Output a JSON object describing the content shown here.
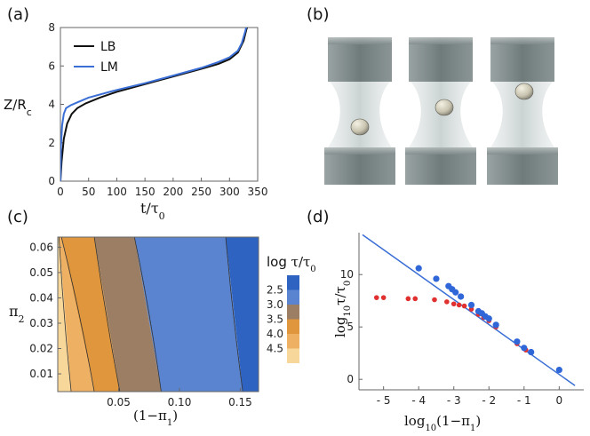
{
  "chart_data": [
    {
      "panel": "(a)",
      "type": "line",
      "xlabel": "t/τ0",
      "ylabel": "Z/Rc",
      "xlim": [
        0,
        350
      ],
      "ylim": [
        0,
        8
      ],
      "xticks": [
        0,
        50,
        100,
        150,
        200,
        250,
        300,
        350
      ],
      "yticks": [
        0,
        2,
        4,
        6,
        8
      ],
      "legend_position": "top-left",
      "series": [
        {
          "name": "LB",
          "color": "#111111",
          "x": [
            0,
            2,
            6,
            12,
            20,
            30,
            45,
            70,
            100,
            150,
            200,
            250,
            280,
            300,
            315,
            325,
            330,
            334
          ],
          "y": [
            0,
            1.0,
            2.2,
            3.0,
            3.5,
            3.8,
            4.05,
            4.35,
            4.65,
            5.05,
            5.45,
            5.85,
            6.1,
            6.35,
            6.7,
            7.3,
            7.9,
            8.3
          ]
        },
        {
          "name": "LM",
          "color": "#3b6fd6",
          "x": [
            0,
            1,
            3,
            6,
            10,
            18,
            30,
            50,
            100,
            150,
            200,
            250,
            280,
            300,
            315,
            322,
            328,
            332
          ],
          "y": [
            0,
            1.8,
            2.9,
            3.5,
            3.8,
            3.95,
            4.1,
            4.35,
            4.75,
            5.1,
            5.5,
            5.9,
            6.2,
            6.45,
            6.8,
            7.2,
            7.8,
            8.3
          ]
        }
      ]
    },
    {
      "panel": "(b)",
      "type": "image"
    },
    {
      "panel": "(c)",
      "type": "heatmap",
      "xlabel": "(1−π1)",
      "ylabel": "π2",
      "xlim": [
        0.0,
        0.165
      ],
      "ylim": [
        0.003,
        0.064
      ],
      "xticks": [
        0.05,
        0.1,
        0.15
      ],
      "xticklabels": [
        "0.05",
        "0.10",
        "0.15"
      ],
      "yticks": [
        0.01,
        0.02,
        0.03,
        0.04,
        0.05,
        0.06
      ],
      "colorbar_title": "log τ/τ0",
      "levels": [
        "2.5",
        "3.0",
        "3.5",
        "4.0",
        "4.5"
      ],
      "band_colors": [
        "#2e63c2",
        "#5a84cf",
        "#9b7e63",
        "#e0963d",
        "#eeb163",
        "#f7d79a"
      ],
      "contours": [
        {
          "level": "2.5",
          "x_top": 0.138,
          "x_bottom": 0.152
        },
        {
          "level": "3.0",
          "x_top": 0.063,
          "x_bottom": 0.085
        },
        {
          "level": "3.5",
          "x_top": 0.03,
          "x_bottom": 0.051
        },
        {
          "level": "4.0",
          "x_top": 0.003,
          "x_bottom": 0.03
        },
        {
          "level": "4.5",
          "x_top": 0.001,
          "x_bottom": 0.011
        }
      ]
    },
    {
      "panel": "(d)",
      "type": "scatter",
      "xlabel": "log10(1−π1)",
      "ylabel": "log10τ/τ0",
      "xlim": [
        -5.7,
        0.7
      ],
      "ylim": [
        -1,
        14
      ],
      "xticks": [
        -5,
        -4,
        -3,
        -2,
        -1,
        0
      ],
      "xticklabels": [
        "- 5",
        "- 4",
        "- 3",
        "- 2",
        "- 1",
        "0"
      ],
      "yticks": [
        0,
        5,
        10
      ],
      "fit_line": {
        "color": "#3b6fd6",
        "x": [
          -5.6,
          0.45
        ],
        "y": [
          13.8,
          -0.6
        ]
      },
      "series": [
        {
          "name": "blue",
          "color": "#2f66d8",
          "x": [
            -4.0,
            -3.5,
            -3.15,
            -3.05,
            -2.95,
            -2.8,
            -2.5,
            -2.3,
            -2.2,
            -2.1,
            -2.0,
            -1.8,
            -1.2,
            -1.0,
            -0.8,
            0.0
          ],
          "y": [
            10.6,
            9.6,
            8.9,
            8.6,
            8.3,
            7.9,
            7.1,
            6.5,
            6.3,
            6.0,
            5.8,
            5.2,
            3.6,
            3.0,
            2.6,
            0.9
          ]
        },
        {
          "name": "red",
          "color": "#e03030",
          "x": [
            -5.2,
            -5.0,
            -4.3,
            -4.1,
            -3.55,
            -3.2,
            -3.0,
            -2.85,
            -2.7,
            -2.5,
            -2.3,
            -2.15,
            -2.0,
            -1.8,
            -1.2,
            -0.95
          ],
          "y": [
            7.8,
            7.8,
            7.7,
            7.7,
            7.6,
            7.4,
            7.2,
            7.1,
            7.0,
            6.7,
            6.2,
            5.9,
            5.6,
            5.0,
            3.4,
            2.8
          ]
        }
      ]
    }
  ]
}
